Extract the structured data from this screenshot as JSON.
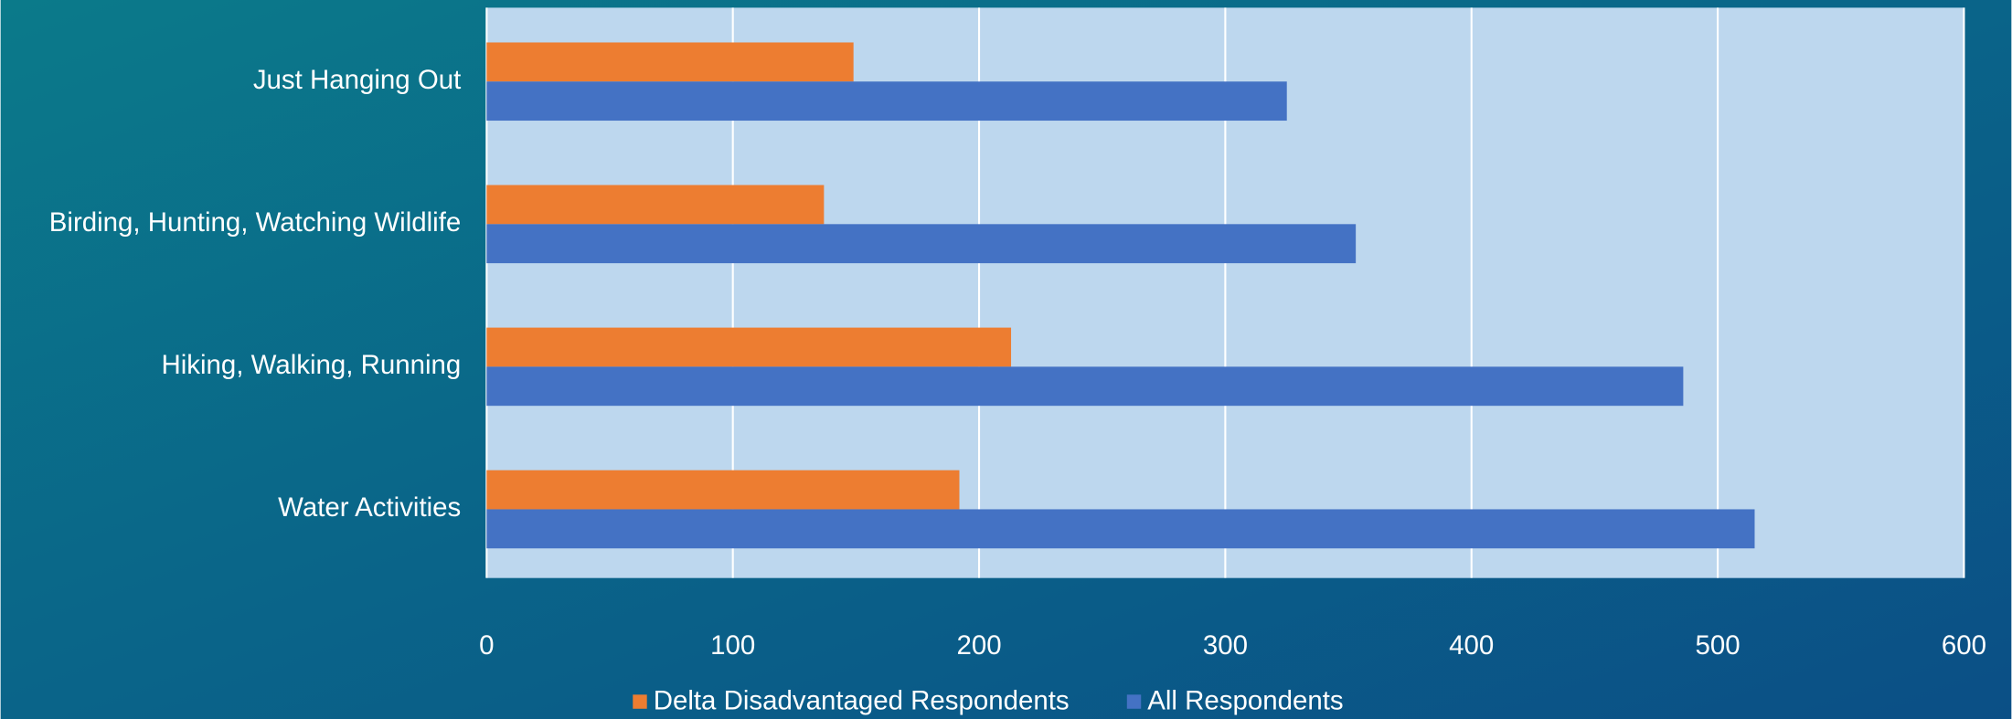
{
  "chart_data": {
    "type": "barh",
    "categories": [
      "Just Hanging Out",
      "Birding, Hunting, Watching Wildlife",
      "Hiking, Walking, Running",
      "Water Activities"
    ],
    "series": [
      {
        "name": "Delta Disadvantaged Respondents",
        "color": "#ed7d31",
        "values": [
          149,
          137,
          213,
          192
        ]
      },
      {
        "name": "All Respondents",
        "color": "#4472c4",
        "values": [
          325,
          353,
          486,
          515
        ]
      }
    ],
    "xlim": [
      0,
      600
    ],
    "xticks": [
      0,
      100,
      200,
      300,
      400,
      500,
      600
    ],
    "grid": true,
    "legend": "bottom"
  }
}
